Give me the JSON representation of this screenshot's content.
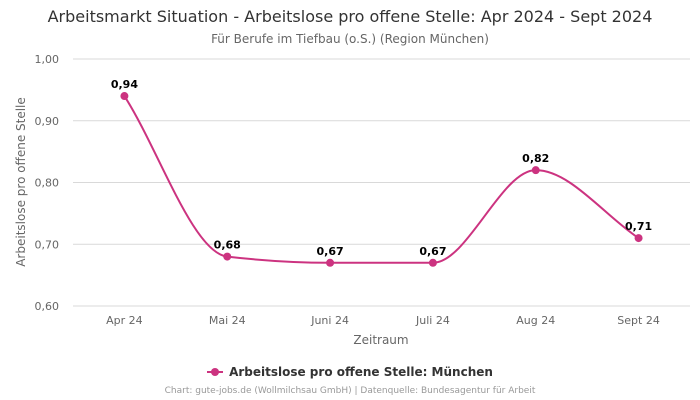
{
  "chart_data": {
    "type": "line",
    "title": "Arbeitsmarkt Situation - Arbeitslose pro offene Stelle: Apr 2024 - Sept 2024",
    "subtitle": "Für Berufe im Tiefbau (o.S.) (Region München)",
    "xlabel": "Zeitraum",
    "ylabel": "Arbeitslose pro offene Stelle",
    "categories": [
      "Apr 24",
      "Mai 24",
      "Juni 24",
      "Juli 24",
      "Aug 24",
      "Sept 24"
    ],
    "series": [
      {
        "name": "Arbeitslose pro offene Stelle: München",
        "values": [
          0.94,
          0.68,
          0.67,
          0.67,
          0.82,
          0.71
        ],
        "labels": [
          "0,94",
          "0,68",
          "0,67",
          "0,67",
          "0,82",
          "0,71"
        ],
        "color": "#cc3380"
      }
    ],
    "ylim": [
      0.6,
      1.0
    ],
    "yticks": [
      1.0,
      0.9,
      0.8,
      0.7,
      0.6
    ],
    "ytick_labels": [
      "1,00",
      "0,90",
      "0,80",
      "0,70",
      "0,60"
    ],
    "grid": true,
    "legend_position": "bottom"
  },
  "credit": "Chart: gute-jobs.de (Wollmilchsau GmbH) | Datenquelle: Bundesagentur für Arbeit",
  "colors": {
    "gridline": "#d9d9d9",
    "axis_text": "#666666"
  }
}
